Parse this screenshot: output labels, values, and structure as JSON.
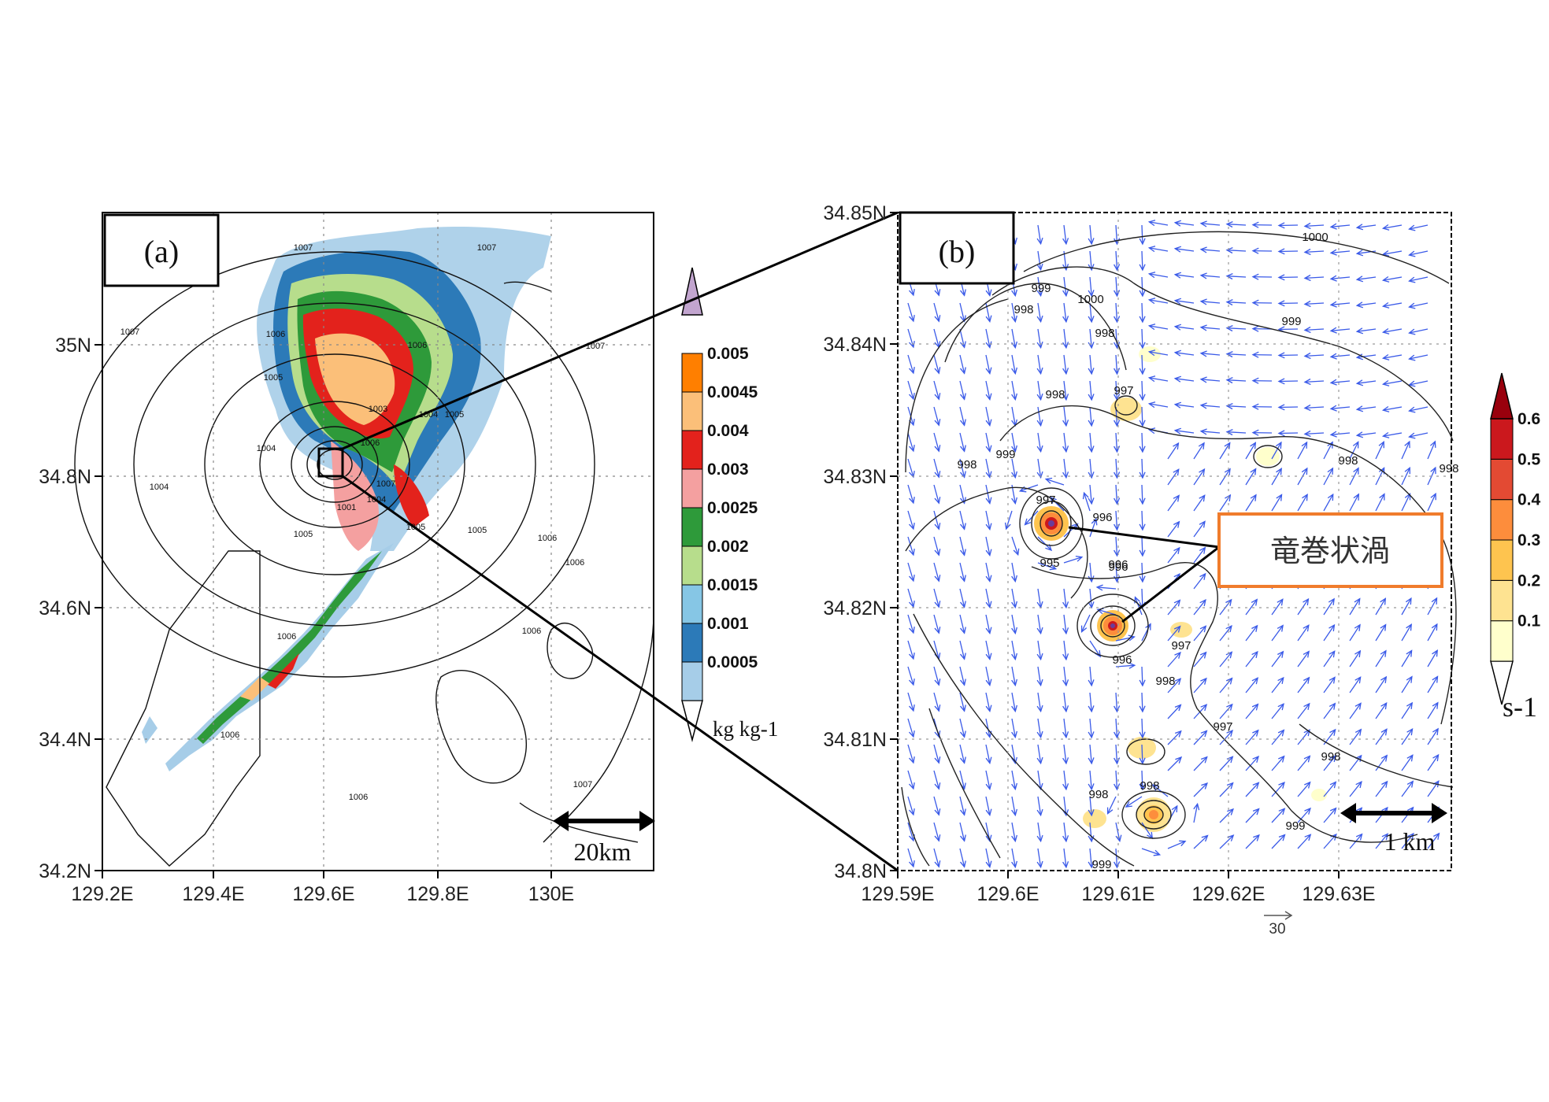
{
  "figure": {
    "panel_a_label": "(a)",
    "panel_b_label": "(b)",
    "annotation": "竜巻状渦"
  },
  "panel_a": {
    "x_ticks": [
      "129.2E",
      "129.4E",
      "129.6E",
      "129.8E",
      "130E"
    ],
    "y_ticks": [
      "34.2N",
      "34.4N",
      "34.6N",
      "34.8N",
      "35N"
    ],
    "xlim": [
      129.2,
      130.18
    ],
    "ylim": [
      34.2,
      35.2
    ],
    "scale_bar": "20km",
    "contour_labels": [
      "1007",
      "1007",
      "1007",
      "1006",
      "1006",
      "1005",
      "1003",
      "1004",
      "1005",
      "1004",
      "1004",
      "1006",
      "1001",
      "1004",
      "1005",
      "1005",
      "1005",
      "1006",
      "1006",
      "1006",
      "1006",
      "1006",
      "1006",
      "1007",
      "1007",
      "1007"
    ]
  },
  "colorbar_a": {
    "levels": [
      "0.0005",
      "0.001",
      "0.0015",
      "0.002",
      "0.0025",
      "0.003",
      "0.004",
      "0.0045",
      "0.005"
    ],
    "colors": [
      "#a6cde8",
      "#2c7ab8",
      "#86c6e5",
      "#b7dd8c",
      "#2e9a3a",
      "#f4a0a0",
      "#e3221c",
      "#fbbf79",
      "#ff7f00",
      "#c2a5cf"
    ],
    "unit": "kg kg-1"
  },
  "panel_b": {
    "x_ticks": [
      "129.59E",
      "129.6E",
      "129.61E",
      "129.62E",
      "129.63E"
    ],
    "y_ticks": [
      "34.8N",
      "34.81N",
      "34.82N",
      "34.83N",
      "34.84N",
      "34.85N"
    ],
    "xlim": [
      129.59,
      129.6395
    ],
    "ylim": [
      34.8,
      34.85
    ],
    "scale_bar": "1 km",
    "ref_vector": "30",
    "contour_labels": [
      "1000",
      "1000",
      "999",
      "999",
      "998",
      "998",
      "998",
      "997",
      "998",
      "999",
      "998",
      "998",
      "997",
      "996",
      "995",
      "996",
      "997",
      "996",
      "996",
      "998",
      "997",
      "998",
      "998",
      "998",
      "999",
      "999"
    ]
  },
  "colorbar_b": {
    "levels": [
      "0.1",
      "0.2",
      "0.3",
      "0.4",
      "0.5",
      "0.6"
    ],
    "colors": [
      "#ffffcc",
      "#fee391",
      "#fec44f",
      "#fd8d3c",
      "#e34a33",
      "#cb181d",
      "#99000d"
    ],
    "unit": "s-1"
  }
}
